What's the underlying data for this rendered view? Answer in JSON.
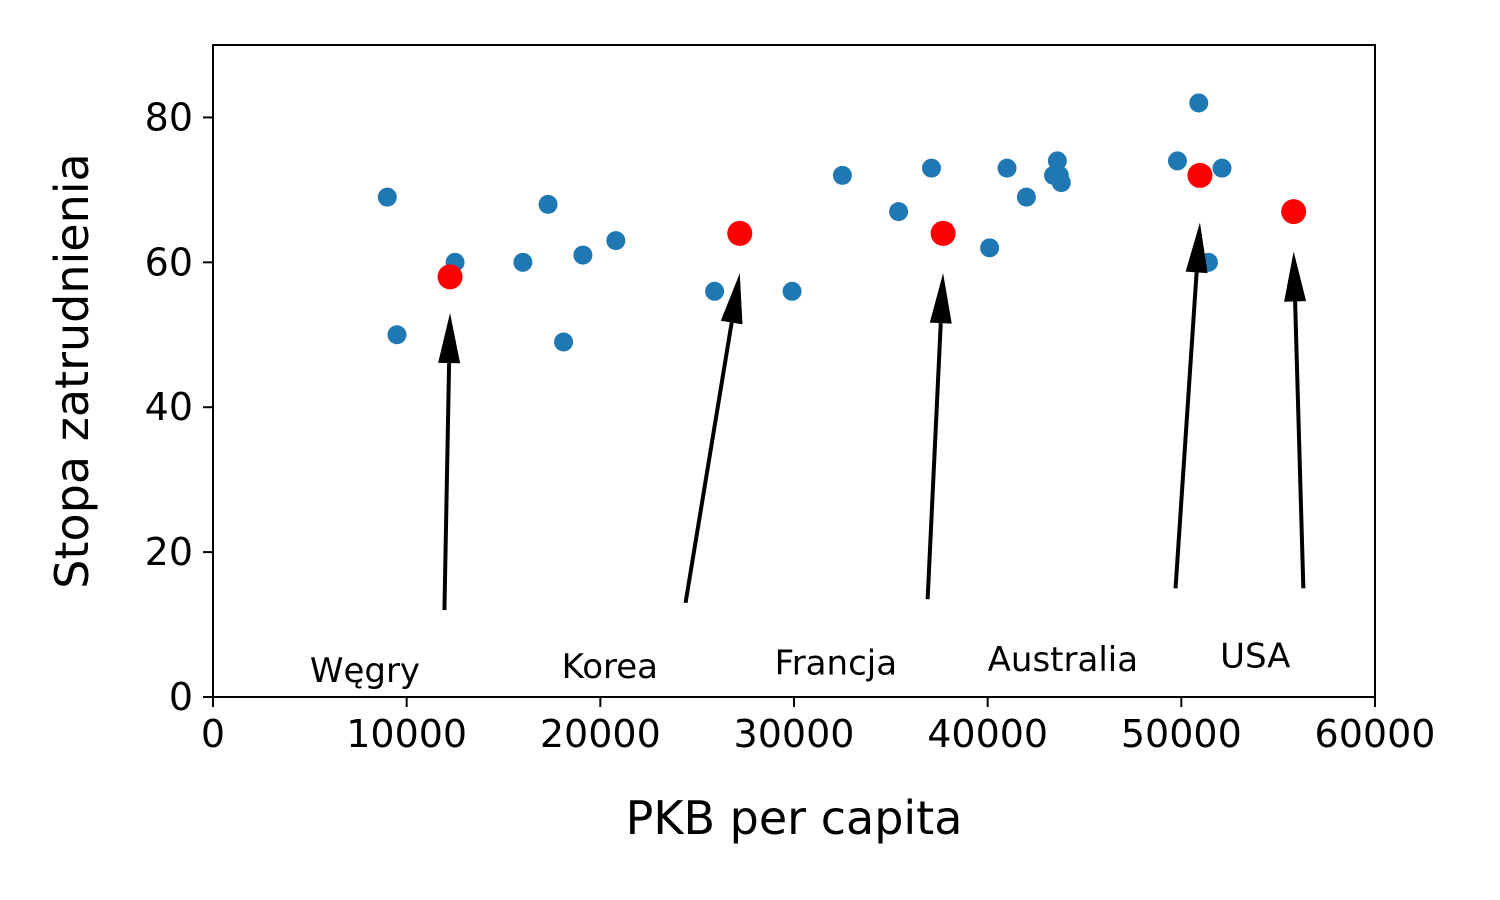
{
  "chart_data": {
    "type": "scatter",
    "title": "",
    "xlabel": "PKB per capita",
    "ylabel": "Stopa zatrudnienia",
    "xlim": [
      0,
      60000
    ],
    "ylim": [
      0,
      90
    ],
    "xticks": [
      "0",
      "10000",
      "20000",
      "30000",
      "40000",
      "50000",
      "60000"
    ],
    "yticks": [
      "0",
      "20",
      "40",
      "60",
      "80"
    ],
    "grid": false,
    "legend": "none",
    "colors": {
      "base": "#1f77b4",
      "highlight": "#ff0000",
      "arrow": "#000000"
    },
    "series": [
      {
        "points": [
          {
            "x": 9000,
            "y": 69
          },
          {
            "x": 9500,
            "y": 50
          },
          {
            "x": 12500,
            "y": 60
          },
          {
            "x": 16000,
            "y": 60
          },
          {
            "x": 17300,
            "y": 68
          },
          {
            "x": 18100,
            "y": 49
          },
          {
            "x": 19100,
            "y": 61
          },
          {
            "x": 20800,
            "y": 63
          },
          {
            "x": 25900,
            "y": 56
          },
          {
            "x": 29900,
            "y": 56
          },
          {
            "x": 32500,
            "y": 72
          },
          {
            "x": 35400,
            "y": 67
          },
          {
            "x": 37100,
            "y": 73
          },
          {
            "x": 40100,
            "y": 62
          },
          {
            "x": 41000,
            "y": 73
          },
          {
            "x": 42000,
            "y": 69
          },
          {
            "x": 43400,
            "y": 72
          },
          {
            "x": 43600,
            "y": 74
          },
          {
            "x": 43700,
            "y": 72
          },
          {
            "x": 43800,
            "y": 71
          },
          {
            "x": 49800,
            "y": 74
          },
          {
            "x": 50900,
            "y": 82
          },
          {
            "x": 51400,
            "y": 60
          },
          {
            "x": 52100,
            "y": 73
          }
        ]
      },
      {
        "points": [
          {
            "x": 12240,
            "y": 58
          },
          {
            "x": 27200,
            "y": 64
          },
          {
            "x": 37700,
            "y": 64
          },
          {
            "x": 50960,
            "y": 72
          },
          {
            "x": 55800,
            "y": 67
          }
        ]
      }
    ],
    "annotations": [
      {
        "label": "Węgry",
        "text_x": 5000,
        "text_y": 1,
        "tip_x": 12240,
        "tip_y": 53,
        "tail_x": 11950,
        "tail_y": 12
      },
      {
        "label": "Korea",
        "text_x": 18000,
        "text_y": 1.5,
        "tip_x": 27200,
        "tip_y": 58.5,
        "tail_x": 24400,
        "tail_y": 13
      },
      {
        "label": "Francja",
        "text_x": 29000,
        "text_y": 2,
        "tip_x": 37700,
        "tip_y": 58.5,
        "tail_x": 36900,
        "tail_y": 13.5
      },
      {
        "label": "Australia",
        "text_x": 40000,
        "text_y": 2.5,
        "tip_x": 50960,
        "tip_y": 65.5,
        "tail_x": 49700,
        "tail_y": 15
      },
      {
        "label": "USA",
        "text_x": 52000,
        "text_y": 3,
        "tip_x": 55800,
        "tip_y": 61.5,
        "tail_x": 56300,
        "tail_y": 15
      }
    ]
  }
}
